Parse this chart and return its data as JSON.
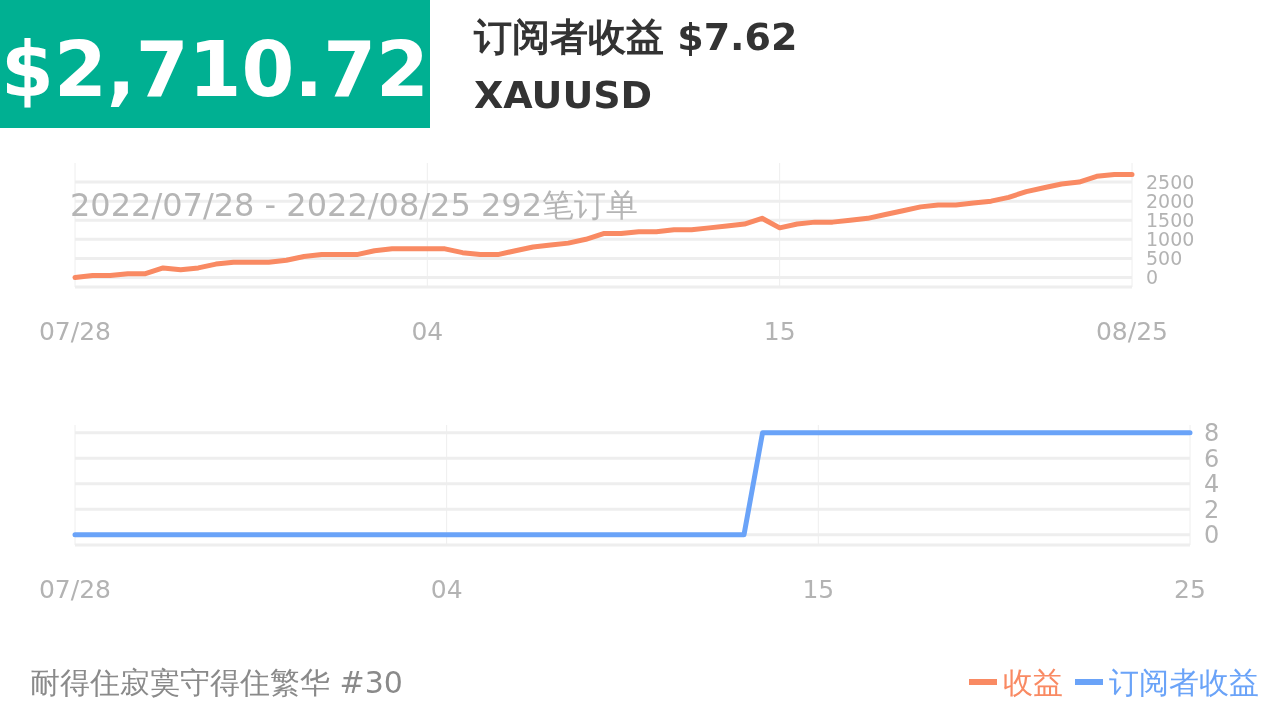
{
  "chart_data": [
    {
      "type": "line",
      "annotations": [
        "$2,710.72",
        "订阅者收益 $7.62",
        "XAUUSD",
        "2022/07/28 - 2022/08/25  292笔订单",
        "耐得住寂寞守得住繁华 #30"
      ],
      "categories": [
        "07/28",
        null,
        null,
        null,
        null,
        null,
        null,
        null,
        null,
        null,
        null,
        null,
        null,
        null,
        null,
        null,
        null,
        null,
        null,
        null,
        "04",
        null,
        null,
        null,
        null,
        null,
        null,
        null,
        null,
        null,
        null,
        null,
        null,
        null,
        null,
        null,
        null,
        null,
        null,
        null,
        "15",
        null,
        null,
        null,
        null,
        null,
        null,
        null,
        null,
        null,
        null,
        null,
        null,
        null,
        null,
        null,
        null,
        null,
        null,
        null,
        "08/25"
      ],
      "ylim": [
        -250,
        3000
      ],
      "yticks": [
        0,
        500,
        1000,
        1500,
        2000,
        2500
      ],
      "grid": true,
      "legend": "bottom right",
      "series": [
        {
          "name": "收益",
          "color": "#f98a63",
          "values": [
            0,
            50,
            50,
            100,
            100,
            250,
            200,
            250,
            350,
            400,
            400,
            400,
            450,
            550,
            600,
            600,
            600,
            700,
            750,
            750,
            750,
            750,
            650,
            600,
            600,
            700,
            800,
            850,
            900,
            1000,
            1150,
            1150,
            1200,
            1200,
            1250,
            1250,
            1300,
            1350,
            1400,
            1550,
            1300,
            1400,
            1450,
            1450,
            1500,
            1550,
            1650,
            1750,
            1850,
            1900,
            1900,
            1950,
            2000,
            2100,
            2250,
            2350,
            2450,
            2500,
            2650,
            2700,
            2700
          ]
        }
      ]
    },
    {
      "type": "line",
      "categories": [
        "07/28",
        null,
        null,
        null,
        null,
        null,
        null,
        null,
        null,
        null,
        null,
        null,
        null,
        null,
        null,
        null,
        null,
        null,
        null,
        null,
        "04",
        null,
        null,
        null,
        null,
        null,
        null,
        null,
        null,
        null,
        null,
        null,
        null,
        null,
        null,
        null,
        null,
        null,
        null,
        null,
        "15",
        null,
        null,
        null,
        null,
        null,
        null,
        null,
        null,
        null,
        null,
        null,
        null,
        null,
        null,
        null,
        null,
        null,
        null,
        null,
        "25"
      ],
      "ylim": [
        -0.8,
        8.6
      ],
      "yticks": [
        0,
        2,
        4,
        6,
        8
      ],
      "grid": true,
      "legend": "bottom right",
      "series": [
        {
          "name": "订阅者收益",
          "color": "#6aa3f8",
          "values": [
            0,
            0,
            0,
            0,
            0,
            0,
            0,
            0,
            0,
            0,
            0,
            0,
            0,
            0,
            0,
            0,
            0,
            0,
            0,
            0,
            0,
            0,
            0,
            0,
            0,
            0,
            0,
            0,
            0,
            0,
            0,
            0,
            0,
            0,
            0,
            0,
            0,
            8,
            8,
            8,
            8,
            8,
            8,
            8,
            8,
            8,
            8,
            8,
            8,
            8,
            8,
            8,
            8,
            8,
            8,
            8,
            8,
            8,
            8,
            8,
            8
          ]
        }
      ]
    }
  ]
}
